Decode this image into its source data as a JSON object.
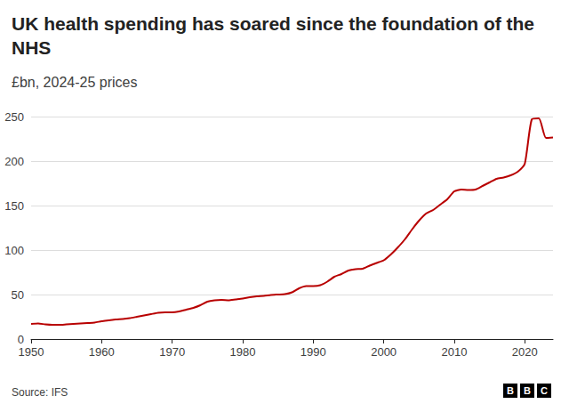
{
  "chart_data": {
    "type": "line",
    "title": "UK health spending has soared since the foundation of the NHS",
    "subtitle": "£bn, 2024-25 prices",
    "source": "Source: IFS",
    "logo": "BBC",
    "color": "#b80000",
    "grid": "y",
    "x": [
      1950,
      1951,
      1952,
      1953,
      1954,
      1955,
      1956,
      1957,
      1958,
      1959,
      1960,
      1961,
      1962,
      1963,
      1964,
      1965,
      1966,
      1967,
      1968,
      1969,
      1970,
      1971,
      1972,
      1973,
      1974,
      1975,
      1976,
      1977,
      1978,
      1979,
      1980,
      1981,
      1982,
      1983,
      1984,
      1985,
      1986,
      1987,
      1988,
      1989,
      1990,
      1991,
      1992,
      1993,
      1994,
      1995,
      1996,
      1997,
      1998,
      1999,
      2000,
      2001,
      2002,
      2003,
      2004,
      2005,
      2006,
      2007,
      2008,
      2009,
      2010,
      2011,
      2012,
      2013,
      2014,
      2015,
      2016,
      2017,
      2018,
      2019,
      2020,
      2021,
      2022,
      2023,
      2024
    ],
    "values": [
      17,
      17.5,
      16.5,
      16,
      16,
      16.5,
      17,
      17.5,
      18,
      18.5,
      20,
      21,
      22,
      22.5,
      23.5,
      25,
      26.5,
      28,
      29.5,
      30,
      30,
      31,
      33,
      35,
      38,
      42,
      43.5,
      44,
      43.5,
      44.5,
      45.5,
      47,
      48,
      48.5,
      49.5,
      50,
      50.5,
      52.5,
      57,
      59.5,
      59.5,
      60.5,
      64.5,
      70,
      73,
      77,
      78.5,
      79,
      82.5,
      85.5,
      88.5,
      95,
      103,
      112,
      123,
      133,
      141,
      145,
      151,
      157,
      166,
      168,
      167.5,
      168,
      172,
      176,
      180,
      181.5,
      184,
      188,
      197,
      247,
      248,
      226,
      226.5
    ],
    "xlim": [
      1950,
      2024
    ],
    "xticks": [
      1950,
      1960,
      1970,
      1980,
      1990,
      2000,
      2010,
      2020
    ],
    "ylim": [
      0,
      250
    ],
    "yticks": [
      0,
      50,
      100,
      150,
      200,
      250
    ]
  }
}
